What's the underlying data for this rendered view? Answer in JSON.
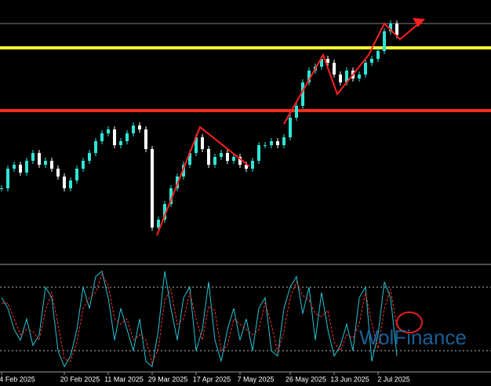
{
  "chart_data": [
    {
      "type": "candlestick",
      "categories": [
        "4 Feb 2025",
        null,
        null,
        null,
        null,
        null,
        null,
        null,
        null,
        null,
        "20 Feb 2025",
        null,
        null,
        null,
        null,
        null,
        null,
        "11 Mar 2025",
        null,
        null,
        null,
        null,
        null,
        null,
        "29 Mar 2025",
        null,
        null,
        null,
        null,
        null,
        null,
        "17 Apr 2025",
        null,
        null,
        null,
        null,
        null,
        null,
        "7 May 2025",
        null,
        null,
        null,
        null,
        null,
        null,
        null,
        "26 May 2025",
        null,
        null,
        null,
        null,
        null,
        null,
        "13 Jun 2025",
        null,
        null,
        null,
        null,
        null,
        null,
        "2 Jul 2025",
        null,
        null,
        null
      ],
      "values": [
        95,
        120,
        125,
        115,
        130,
        140,
        125,
        130,
        120,
        110,
        95,
        105,
        120,
        130,
        140,
        155,
        165,
        170,
        150,
        155,
        165,
        175,
        170,
        145,
        45,
        55,
        75,
        95,
        110,
        125,
        140,
        160,
        145,
        125,
        135,
        140,
        130,
        135,
        125,
        120,
        130,
        150,
        150,
        155,
        150,
        160,
        185,
        200,
        230,
        245,
        250,
        260,
        255,
        240,
        230,
        245,
        235,
        240,
        255,
        260,
        270,
        295,
        305,
        290
      ],
      "up_color": "#2ee6d6",
      "down_color": "#ffffff",
      "ylim": [
        0,
        335
      ],
      "levels": [
        {
          "value": 274,
          "color": "#ffff33"
        },
        {
          "value": 194,
          "color": "#ff2a1a"
        },
        {
          "value": 305,
          "color": "#808080"
        }
      ]
    },
    {
      "type": "line",
      "series": [
        {
          "color": "#25c5d5",
          "values": [
            70,
            60,
            40,
            30,
            50,
            25,
            35,
            80,
            70,
            20,
            5,
            15,
            40,
            80,
            60,
            90,
            95,
            70,
            30,
            60,
            40,
            20,
            50,
            10,
            5,
            40,
            95,
            60,
            30,
            70,
            80,
            20,
            40,
            85,
            30,
            10,
            40,
            60,
            30,
            50,
            20,
            60,
            70,
            20,
            15,
            60,
            80,
            90,
            55,
            80,
            30,
            75,
            40,
            15,
            25,
            45,
            20,
            70,
            80,
            10,
            35,
            85,
            70,
            15
          ]
        },
        {
          "color": "#ff3030",
          "values": [
            65,
            65,
            50,
            35,
            40,
            38,
            30,
            58,
            75,
            45,
            12,
            10,
            28,
            60,
            70,
            75,
            92,
            82,
            50,
            45,
            50,
            30,
            35,
            30,
            8,
            22,
            68,
            78,
            45,
            50,
            75,
            50,
            30,
            62,
            58,
            20,
            25,
            50,
            45,
            40,
            35,
            40,
            65,
            45,
            18,
            38,
            70,
            85,
            72,
            68,
            55,
            52,
            58,
            28,
            20,
            35,
            32,
            45,
            75,
            45,
            22,
            60,
            78,
            42
          ]
        }
      ],
      "ylim": [
        0,
        100
      ],
      "levels": [
        80,
        20
      ]
    }
  ],
  "watermark": "WolFinance"
}
